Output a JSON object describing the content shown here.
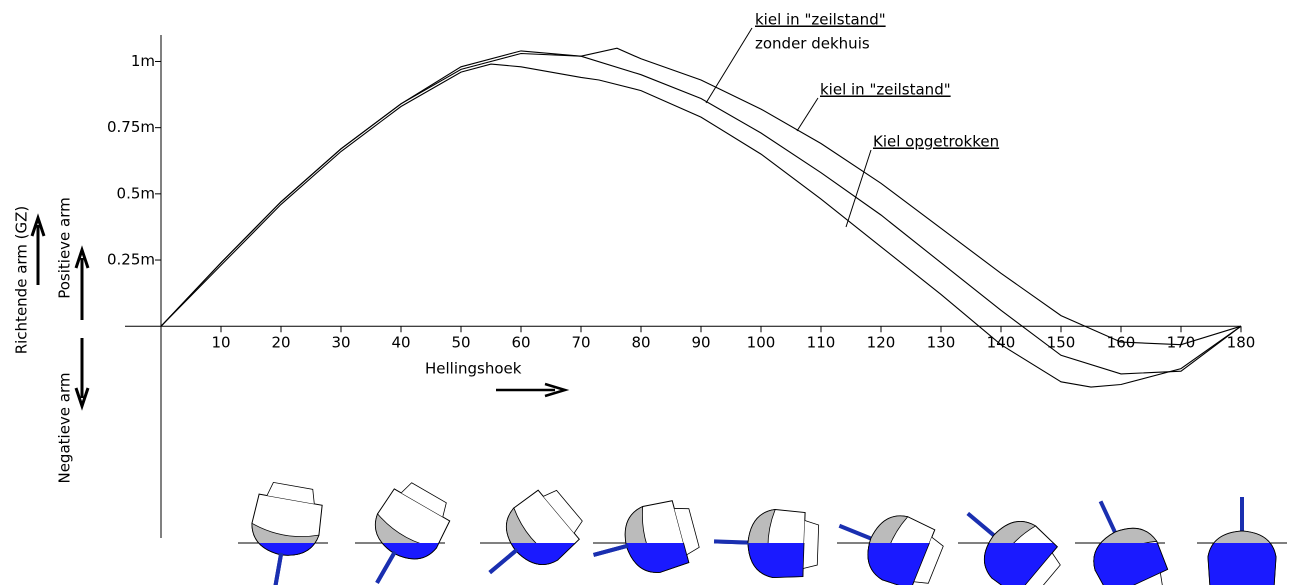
{
  "chart_data": {
    "type": "line",
    "x_label": "Hellingshoek",
    "y_label": "Richtende arm (GZ)",
    "y_positive_label": "Positieve arm",
    "y_negative_label": "Negatieve arm",
    "xlim": [
      0,
      180
    ],
    "ylim": [
      -0.8,
      1.1
    ],
    "xticks": [
      10,
      20,
      30,
      40,
      50,
      60,
      70,
      80,
      90,
      100,
      110,
      120,
      130,
      140,
      150,
      160,
      170,
      180
    ],
    "yticks": [
      {
        "value": 0.25,
        "label": "0.25m"
      },
      {
        "value": 0.5,
        "label": "0.5m"
      },
      {
        "value": 0.75,
        "label": "0.75m"
      },
      {
        "value": 1,
        "label": "1m"
      }
    ],
    "series": [
      {
        "color": "#000000",
        "x": [
          0,
          10,
          20,
          30,
          40,
          50,
          60,
          70,
          76,
          80,
          90,
          100,
          110,
          120,
          130,
          140,
          150,
          160,
          170,
          180
        ],
        "values": [
          0,
          0.24,
          0.47,
          0.67,
          0.84,
          0.97,
          1.03,
          1.02,
          1.05,
          1.01,
          0.93,
          0.82,
          0.69,
          0.54,
          0.37,
          0.2,
          0.04,
          -0.06,
          -0.07,
          0
        ]
      },
      {
        "color": "#000000",
        "x": [
          0,
          10,
          20,
          30,
          40,
          50,
          60,
          70,
          80,
          90,
          100,
          110,
          120,
          130,
          140,
          150,
          160,
          170,
          180
        ],
        "values": [
          0,
          0.24,
          0.47,
          0.67,
          0.84,
          0.98,
          1.04,
          1.02,
          0.95,
          0.86,
          0.73,
          0.58,
          0.42,
          0.24,
          0.06,
          -0.11,
          -0.18,
          -0.17,
          0
        ]
      },
      {
        "color": "#000000",
        "x": [
          0,
          10,
          20,
          30,
          40,
          50,
          55,
          60,
          70,
          73,
          80,
          90,
          100,
          110,
          120,
          130,
          140,
          150,
          155,
          160,
          170,
          180
        ],
        "values": [
          0,
          0.23,
          0.46,
          0.66,
          0.83,
          0.96,
          0.99,
          0.98,
          0.94,
          0.93,
          0.89,
          0.79,
          0.65,
          0.48,
          0.3,
          0.12,
          -0.07,
          -0.21,
          -0.23,
          -0.22,
          -0.16,
          0
        ]
      }
    ],
    "annotations": [
      {
        "lines": [
          "kiel in \"zeilstand\"",
          "zonder dekhuis"
        ]
      },
      {
        "lines": [
          "kiel in \"zeilstand\""
        ]
      },
      {
        "lines": [
          "Kiel opgetrokken"
        ]
      }
    ]
  }
}
